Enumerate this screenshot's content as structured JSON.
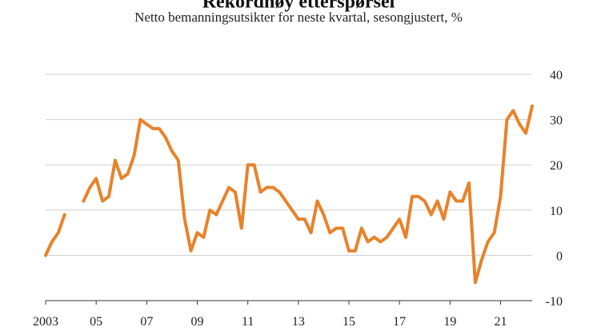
{
  "chart_data": {
    "type": "line",
    "title": "Rekordhøy etterspørsel",
    "subtitle": "Netto bemanningsutsikter for neste kvartal, sesongjustert, %",
    "xlabel": "",
    "ylabel": "",
    "ylim": [
      -10,
      40
    ],
    "yticks": [
      40,
      30,
      20,
      10,
      0,
      -10
    ],
    "xlim": [
      2003.0,
      2022.25
    ],
    "xticks": [
      {
        "value": 2003,
        "label": "2003"
      },
      {
        "value": 2005,
        "label": "05"
      },
      {
        "value": 2007,
        "label": "07"
      },
      {
        "value": 2009,
        "label": "09"
      },
      {
        "value": 2011,
        "label": "11"
      },
      {
        "value": 2013,
        "label": "13"
      },
      {
        "value": 2015,
        "label": "15"
      },
      {
        "value": 2017,
        "label": "17"
      },
      {
        "value": 2019,
        "label": "19"
      },
      {
        "value": 2021,
        "label": "21"
      }
    ],
    "grid": true,
    "legend": "none",
    "color": "#E8822A",
    "series": [
      {
        "segments": [
          [
            [
              2003.0,
              0
            ],
            [
              2003.25,
              3
            ],
            [
              2003.5,
              5
            ],
            [
              2003.75,
              9
            ]
          ],
          [
            [
              2004.5,
              12
            ],
            [
              2004.75,
              15
            ],
            [
              2005.0,
              17
            ],
            [
              2005.25,
              12
            ],
            [
              2005.5,
              13
            ],
            [
              2005.75,
              21
            ],
            [
              2006.0,
              17
            ],
            [
              2006.25,
              18
            ],
            [
              2006.5,
              22
            ],
            [
              2006.75,
              30
            ],
            [
              2007.0,
              29
            ],
            [
              2007.25,
              28
            ],
            [
              2007.5,
              28
            ],
            [
              2007.75,
              26
            ],
            [
              2008.0,
              23
            ],
            [
              2008.25,
              21
            ],
            [
              2008.5,
              8
            ],
            [
              2008.75,
              1
            ],
            [
              2009.0,
              5
            ],
            [
              2009.25,
              4
            ],
            [
              2009.5,
              10
            ],
            [
              2009.75,
              9
            ],
            [
              2010.0,
              12
            ],
            [
              2010.25,
              15
            ],
            [
              2010.5,
              14
            ],
            [
              2010.75,
              6
            ],
            [
              2011.0,
              20
            ],
            [
              2011.25,
              20
            ],
            [
              2011.5,
              14
            ],
            [
              2011.75,
              15
            ],
            [
              2012.0,
              15
            ],
            [
              2012.25,
              14
            ],
            [
              2012.5,
              12
            ],
            [
              2012.75,
              10
            ],
            [
              2013.0,
              8
            ],
            [
              2013.25,
              8
            ],
            [
              2013.5,
              5
            ],
            [
              2013.75,
              12
            ],
            [
              2014.0,
              9
            ],
            [
              2014.25,
              5
            ],
            [
              2014.5,
              6
            ],
            [
              2014.75,
              6
            ],
            [
              2015.0,
              1
            ],
            [
              2015.25,
              1
            ],
            [
              2015.5,
              6
            ],
            [
              2015.75,
              3
            ],
            [
              2016.0,
              4
            ],
            [
              2016.25,
              3
            ],
            [
              2016.5,
              4
            ],
            [
              2016.75,
              6
            ],
            [
              2017.0,
              8
            ],
            [
              2017.25,
              4
            ],
            [
              2017.5,
              13
            ],
            [
              2017.75,
              13
            ],
            [
              2018.0,
              12
            ],
            [
              2018.25,
              9
            ],
            [
              2018.5,
              12
            ],
            [
              2018.75,
              8
            ],
            [
              2019.0,
              14
            ],
            [
              2019.25,
              12
            ],
            [
              2019.5,
              12
            ],
            [
              2019.75,
              16
            ],
            [
              2020.0,
              -6
            ],
            [
              2020.25,
              -1
            ],
            [
              2020.5,
              3
            ],
            [
              2020.75,
              5
            ],
            [
              2021.0,
              13
            ],
            [
              2021.25,
              30
            ],
            [
              2021.5,
              32
            ],
            [
              2021.75,
              29
            ],
            [
              2022.0,
              27
            ],
            [
              2022.25,
              33
            ]
          ]
        ]
      }
    ]
  }
}
